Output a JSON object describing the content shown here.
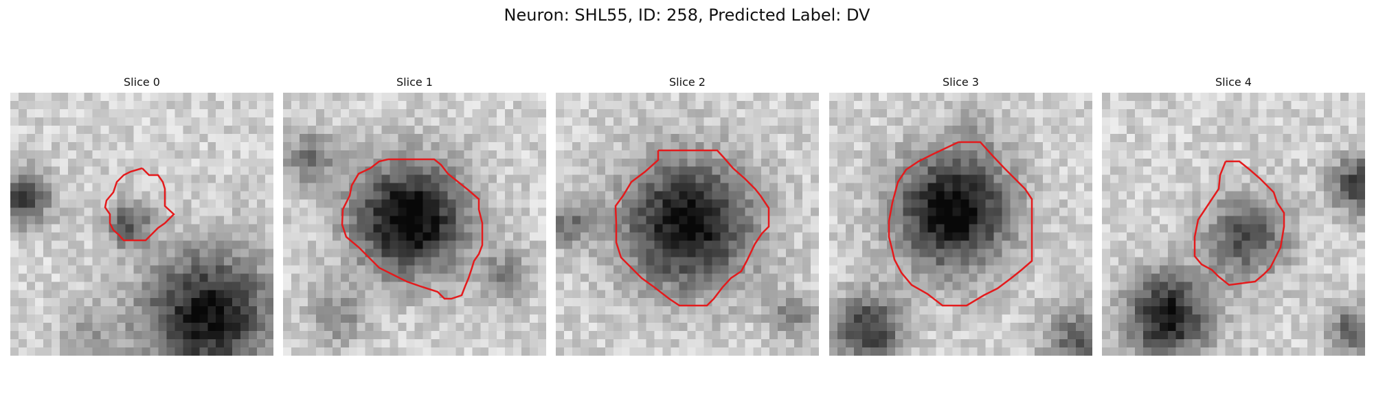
{
  "title": "Neuron: SHL55, ID: 258, Predicted Label: DV",
  "contour_color": "#e41a1c",
  "panels": [
    {
      "title": "Slice 0"
    },
    {
      "title": "Slice 1"
    },
    {
      "title": "Slice 2"
    },
    {
      "title": "Slice 3"
    },
    {
      "title": "Slice 4"
    }
  ]
}
